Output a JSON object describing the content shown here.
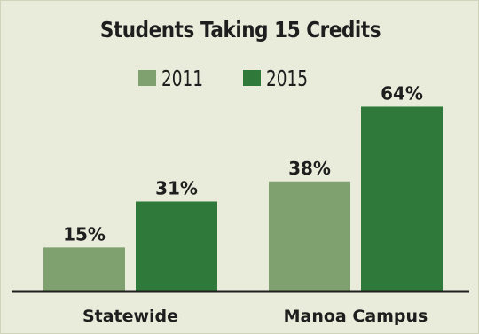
{
  "chart_data": {
    "type": "bar",
    "title": "Students Taking 15 Credits",
    "categories": [
      "Statewide",
      "Manoa Campus"
    ],
    "series": [
      {
        "name": "2011",
        "values": [
          15,
          38
        ],
        "labels": [
          "15%",
          "38%"
        ],
        "color": "#7fa06f"
      },
      {
        "name": "2015",
        "values": [
          31,
          64
        ],
        "labels": [
          "31%",
          "64%"
        ],
        "color": "#2f7a3b"
      }
    ],
    "ylim": [
      0,
      70
    ],
    "grid": false,
    "legend": "top"
  }
}
